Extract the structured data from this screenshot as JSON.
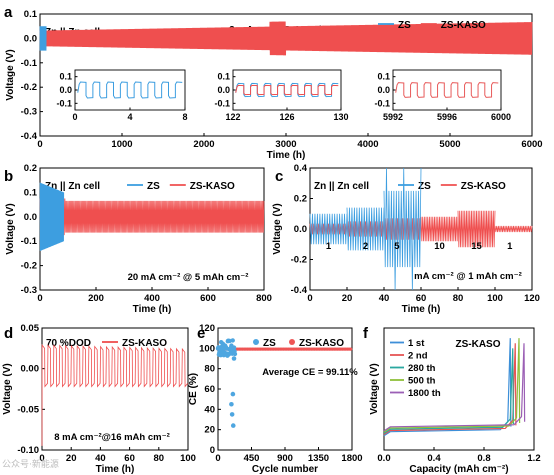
{
  "colors": {
    "zs": "#3d9ee0",
    "kaso": "#ef4f4f",
    "zs_dot": "#4ea6e0",
    "kaso_dot": "#ee5555",
    "c280": "#2aa8a0",
    "c500": "#8fbf3a",
    "c1800": "#9b5fb5",
    "inset_kaso": "#e85a5a"
  },
  "watermark": "公众号·新能源",
  "legend": {
    "zs": "ZS",
    "kaso": "ZS-KASO"
  },
  "chart_data": [
    {
      "panel": "a",
      "type": "line",
      "label_text": "Zn || Zn cell",
      "condition": "2 mA cm⁻² @ 1 mAh cm⁻²",
      "xlabel": "Time (h)",
      "ylabel": "Voltage (V)",
      "xlim": [
        0,
        6000
      ],
      "ylim": [
        -0.4,
        0.1
      ],
      "xticks": [
        "0",
        "1000",
        "2000",
        "3000",
        "4000",
        "5000",
        "6000"
      ],
      "yticks": [
        "-0.4",
        "-0.3",
        "-0.2",
        "-0.1",
        "0.0",
        "0.1"
      ],
      "series": [
        {
          "name": "ZS",
          "x_range": [
            0,
            75
          ],
          "amplitude": 0.045
        },
        {
          "name": "ZS-KASO",
          "x_range": [
            0,
            6000
          ],
          "amplitude_start": 0.035,
          "amplitude_end": 0.07
        }
      ],
      "insets": [
        {
          "xlim": [
            0,
            8
          ],
          "xticks": [
            "0",
            "4",
            "8"
          ],
          "yticks": [
            "0.1",
            "0.0",
            "-0.1"
          ],
          "series": "ZS"
        },
        {
          "xlim": [
            122,
            130
          ],
          "xticks": [
            "122",
            "126",
            "130"
          ],
          "yticks": [
            "0.1",
            "0.0",
            "-0.1"
          ],
          "series": "both"
        },
        {
          "xlim": [
            5992,
            6000
          ],
          "xticks": [
            "5992",
            "5996",
            "6000"
          ],
          "yticks": [
            "0.1",
            "0.0",
            "-0.1"
          ],
          "series": "ZS-KASO"
        }
      ]
    },
    {
      "panel": "b",
      "type": "line",
      "label_text": "Zn || Zn cell",
      "condition": "20 mA cm⁻² @ 5 mAh cm⁻²",
      "xlabel": "Time (h)",
      "ylabel": "Voltage (V)",
      "xlim": [
        0,
        800
      ],
      "ylim": [
        -0.3,
        0.2
      ],
      "xticks": [
        "0",
        "200",
        "400",
        "600",
        "800"
      ],
      "yticks": [
        "-0.3",
        "-0.2",
        "-0.1",
        "0.0",
        "0.1",
        "0.2"
      ],
      "series": [
        {
          "name": "ZS",
          "x_range": [
            0,
            85
          ],
          "amplitude": 0.15
        },
        {
          "name": "ZS-KASO",
          "x_range": [
            0,
            800
          ],
          "amplitude": 0.07
        }
      ]
    },
    {
      "panel": "c",
      "type": "line",
      "label_text": "Zn || Zn cell",
      "condition": "mA cm⁻² @ 1 mAh cm⁻²",
      "rate_labels": [
        "1",
        "2",
        "5",
        "10",
        "15",
        "1"
      ],
      "xlabel": "Time (h)",
      "ylabel": "Voltage (V)",
      "xlim": [
        0,
        120
      ],
      "ylim": [
        -0.4,
        0.4
      ],
      "xticks": [
        "0",
        "20",
        "40",
        "60",
        "80",
        "100",
        "120"
      ],
      "yticks": [
        "-0.4",
        "-0.2",
        "0.0",
        "0.2",
        "0.4"
      ],
      "series": [
        {
          "name": "ZS",
          "x_range": [
            0,
            60
          ]
        },
        {
          "name": "ZS-KASO",
          "x_range": [
            0,
            120
          ]
        }
      ]
    },
    {
      "panel": "d",
      "type": "line",
      "label_text": "70 %DOD",
      "condition": "8 mA cm⁻²@16 mAh cm⁻²",
      "xlabel": "Time (h)",
      "ylabel": "Voltage (V)",
      "xlim": [
        0,
        100
      ],
      "ylim": [
        -0.1,
        0.05
      ],
      "xticks": [
        "0",
        "20",
        "40",
        "60",
        "80",
        "100"
      ],
      "yticks": [
        "-0.10",
        "-0.05",
        "0.00",
        "0.05"
      ],
      "series": [
        {
          "name": "ZS-KASO",
          "x_range": [
            0,
            100
          ],
          "cycles": 25
        }
      ]
    },
    {
      "panel": "e",
      "type": "scatter",
      "annotation": "Average CE = 99.11%",
      "xlabel": "Cycle number",
      "ylabel": "CE (%)",
      "xlim": [
        0,
        1800
      ],
      "ylim": [
        0,
        120
      ],
      "xticks": [
        "0",
        "450",
        "900",
        "1350",
        "1800"
      ],
      "yticks": [
        "0",
        "20",
        "40",
        "60",
        "80",
        "100",
        "120"
      ],
      "series": [
        {
          "name": "ZS",
          "x_range": [
            0,
            230
          ],
          "outliers": [
            [
              180,
              45
            ],
            [
              190,
              35
            ],
            [
              205,
              24
            ],
            [
              215,
              90
            ],
            [
              200,
              55
            ]
          ]
        },
        {
          "name": "ZS-KASO",
          "x_range": [
            0,
            1800
          ],
          "value": 99.11
        }
      ]
    },
    {
      "panel": "f",
      "type": "line",
      "title": "ZS-KASO",
      "xlabel": "Capacity (mAh cm⁻²)",
      "ylabel": "Voltage (V)",
      "xlim": [
        0.0,
        1.2
      ],
      "xticks": [
        "0.0",
        "0.4",
        "0.8",
        "1.2"
      ],
      "series": [
        {
          "name": "1 st",
          "plateau": -0.07,
          "end_x": 1.01
        },
        {
          "name": "2 nd",
          "plateau": -0.04,
          "end_x": 1.05
        },
        {
          "name": "280 th",
          "plateau": -0.05,
          "end_x": 1.03
        },
        {
          "name": "500 th",
          "plateau": -0.05,
          "end_x": 1.08
        },
        {
          "name": "1800 th",
          "plateau": -0.06,
          "end_x": 1.12
        }
      ]
    }
  ]
}
